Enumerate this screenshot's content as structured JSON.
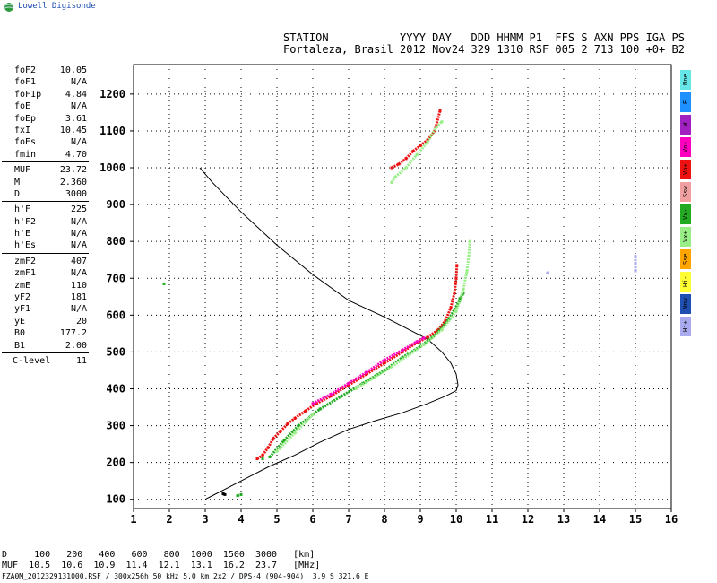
{
  "brand": "Lowell Digisonde",
  "header": {
    "line1": "STATION           YYYY DAY   DDD HHMM P1  FFS S AXN PPS IGA PS",
    "line2": "Fortaleza, Brasil 2012 Nov24 329 1310 RSF 005 2 713 100 +0+ B2"
  },
  "scaled_parameters": [
    {
      "name": "foF2",
      "value": "10.05"
    },
    {
      "name": "foF1",
      "value": "N/A"
    },
    {
      "name": "foF1p",
      "value": "4.84"
    },
    {
      "name": "foE",
      "value": "N/A"
    },
    {
      "name": "foEp",
      "value": "3.61"
    },
    {
      "name": "fxI",
      "value": "10.45"
    },
    {
      "name": "foEs",
      "value": "N/A"
    },
    {
      "name": "fmin",
      "value": "4.70"
    },
    {
      "name": "MUF",
      "value": "23.72"
    },
    {
      "name": "M",
      "value": "2.360"
    },
    {
      "name": "D",
      "value": "3000"
    },
    {
      "name": "h'F",
      "value": "225"
    },
    {
      "name": "h'F2",
      "value": "N/A"
    },
    {
      "name": "h'E",
      "value": "N/A"
    },
    {
      "name": "h'Es",
      "value": "N/A"
    },
    {
      "name": "zmF2",
      "value": "407"
    },
    {
      "name": "zmF1",
      "value": "N/A"
    },
    {
      "name": "zmE",
      "value": "110"
    },
    {
      "name": "yF2",
      "value": "181"
    },
    {
      "name": "yF1",
      "value": "N/A"
    },
    {
      "name": "yE",
      "value": "20"
    },
    {
      "name": "B0",
      "value": "177.2"
    },
    {
      "name": "B1",
      "value": "2.00"
    },
    {
      "name": "C-level",
      "value": "11"
    }
  ],
  "legend": [
    {
      "label": "Nne",
      "color": "#66e6e6"
    },
    {
      "label": "E",
      "color": "#1e90ff"
    },
    {
      "label": "W",
      "color": "#a020c0"
    },
    {
      "label": "Vo-",
      "color": "#ff00c0"
    },
    {
      "label": "Vo+",
      "color": "#ee1111"
    },
    {
      "label": "Ssw",
      "color": "#f0a0a0"
    },
    {
      "label": "Vx-",
      "color": "#22aa22"
    },
    {
      "label": "Vx+",
      "color": "#99ee88"
    },
    {
      "label": "Sse",
      "color": "#ffa500"
    },
    {
      "label": "Hi-",
      "color": "#ffff33"
    },
    {
      "label": "Nnw",
      "color": "#1f4fb0"
    },
    {
      "label": "Hi+",
      "color": "#aaaaee"
    }
  ],
  "footer": {
    "d_row": "D     100   200   400   600   800  1000  1500  3000   [km]",
    "muf_row": "MUF  10.5  10.6  10.9  11.4  12.1  13.1  16.2  23.7   [MHz]",
    "file_row": "FZA0M_2012329131000.RSF / 300x256h 50 kHz 5.0 km 2x2 / DPS-4 (904-904)  3.9 S 321.6 E"
  },
  "chart_data": {
    "type": "scatter",
    "xlim": [
      1,
      16
    ],
    "ylim": [
      75,
      1280
    ],
    "x_ticks": [
      1,
      2,
      3,
      4,
      5,
      6,
      7,
      8,
      9,
      10,
      11,
      12,
      13,
      14,
      15,
      16
    ],
    "y_ticks": [
      100,
      200,
      300,
      400,
      500,
      600,
      700,
      800,
      900,
      1000,
      1100,
      1200
    ],
    "grid": true,
    "profile": {
      "color": "#000000",
      "points": [
        [
          2.85,
          1000
        ],
        [
          3.2,
          960
        ],
        [
          4.0,
          880
        ],
        [
          5.0,
          790
        ],
        [
          6.0,
          710
        ],
        [
          7.0,
          640
        ],
        [
          8.0,
          595
        ],
        [
          8.7,
          560
        ],
        [
          9.2,
          535
        ],
        [
          9.6,
          500
        ],
        [
          9.85,
          470
        ],
        [
          10.0,
          440
        ],
        [
          10.05,
          410
        ],
        [
          10.0,
          395
        ],
        [
          9.7,
          380
        ],
        [
          9.2,
          360
        ],
        [
          8.5,
          335
        ],
        [
          7.8,
          315
        ],
        [
          7.0,
          290
        ],
        [
          6.2,
          255
        ],
        [
          5.5,
          220
        ],
        [
          4.8,
          190
        ],
        [
          4.2,
          160
        ],
        [
          3.6,
          130
        ],
        [
          3.2,
          110
        ],
        [
          3.0,
          100
        ]
      ]
    },
    "traces": [
      {
        "color": "#ee1111",
        "points": [
          [
            4.45,
            210
          ],
          [
            4.6,
            220
          ],
          [
            4.75,
            240
          ],
          [
            4.9,
            265
          ],
          [
            5.1,
            285
          ],
          [
            5.3,
            305
          ],
          [
            5.5,
            320
          ],
          [
            5.8,
            340
          ],
          [
            6.1,
            360
          ],
          [
            6.5,
            380
          ],
          [
            7.0,
            410
          ],
          [
            7.5,
            440
          ],
          [
            8.0,
            470
          ],
          [
            8.5,
            500
          ],
          [
            8.9,
            525
          ],
          [
            9.2,
            540
          ],
          [
            9.5,
            560
          ],
          [
            9.7,
            585
          ],
          [
            9.85,
            620
          ],
          [
            9.95,
            660
          ],
          [
            10.0,
            700
          ],
          [
            10.02,
            735
          ]
        ]
      },
      {
        "color": "#ff00c0",
        "points": [
          [
            6.0,
            360
          ],
          [
            6.5,
            385
          ],
          [
            7.0,
            415
          ],
          [
            7.5,
            445
          ],
          [
            8.0,
            478
          ],
          [
            8.5,
            505
          ],
          [
            8.9,
            528
          ],
          [
            9.1,
            538
          ]
        ]
      },
      {
        "color": "#22aa22",
        "points": [
          [
            4.8,
            215
          ],
          [
            5.2,
            260
          ],
          [
            5.6,
            300
          ],
          [
            6.2,
            345
          ],
          [
            6.8,
            380
          ],
          [
            7.4,
            415
          ],
          [
            8.0,
            450
          ],
          [
            8.5,
            485
          ],
          [
            9.0,
            515
          ],
          [
            9.4,
            545
          ],
          [
            9.8,
            590
          ],
          [
            10.1,
            640
          ],
          [
            10.2,
            660
          ]
        ]
      },
      {
        "color": "#99ee88",
        "points": [
          [
            5.0,
            230
          ],
          [
            5.5,
            280
          ],
          [
            6.0,
            330
          ],
          [
            7.2,
            400
          ],
          [
            8.2,
            460
          ],
          [
            9.1,
            520
          ],
          [
            9.6,
            560
          ],
          [
            10.0,
            610
          ],
          [
            10.2,
            670
          ],
          [
            10.3,
            720
          ],
          [
            10.35,
            760
          ],
          [
            10.38,
            800
          ]
        ]
      },
      {
        "color": "#ee1111",
        "points": [
          [
            8.2,
            1000
          ],
          [
            8.4,
            1010
          ],
          [
            8.6,
            1025
          ],
          [
            8.8,
            1045
          ],
          [
            9.0,
            1060
          ],
          [
            9.2,
            1075
          ],
          [
            9.4,
            1100
          ],
          [
            9.55,
            1155
          ]
        ]
      },
      {
        "color": "#99ee88",
        "points": [
          [
            8.2,
            960
          ],
          [
            8.3,
            975
          ],
          [
            8.6,
            1000
          ],
          [
            8.9,
            1035
          ],
          [
            9.2,
            1070
          ],
          [
            9.45,
            1110
          ],
          [
            9.6,
            1125
          ]
        ]
      },
      {
        "color": "#22aa22",
        "points": [
          [
            3.9,
            110
          ],
          [
            4.0,
            113
          ],
          [
            4.6,
            210
          ],
          [
            10.1,
            645
          ],
          [
            1.85,
            685
          ]
        ]
      },
      {
        "color": "#aaaaee",
        "points": [
          [
            12.55,
            715
          ],
          [
            15.0,
            720
          ],
          [
            15.0,
            740
          ],
          [
            15.0,
            760
          ]
        ]
      },
      {
        "color": "#000000",
        "points": [
          [
            3.5,
            115
          ],
          [
            3.55,
            113
          ]
        ]
      }
    ]
  }
}
